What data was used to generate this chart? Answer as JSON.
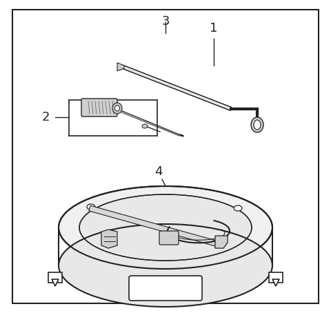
{
  "background_color": "#ffffff",
  "border_color": "#444444",
  "label_fontsize": 13,
  "fig_width": 4.8,
  "fig_height": 4.54,
  "dpi": 100,
  "color": "#222222",
  "gray_fill": "#bbbbbb",
  "light_gray": "#dddddd"
}
